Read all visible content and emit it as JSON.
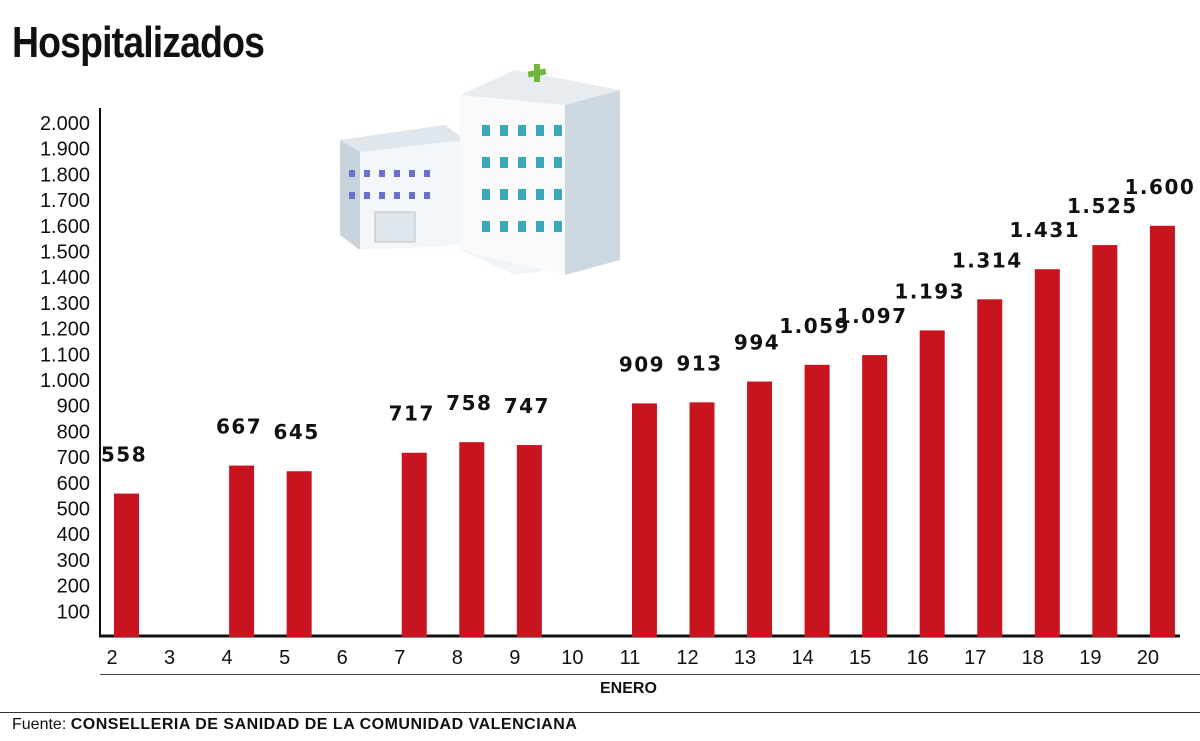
{
  "title": "Hospitalizados",
  "source": {
    "prefix": "Fuente:",
    "name": "CONSELLERIA DE SANIDAD DE LA COMUNIDAD VALENCIANA"
  },
  "colors": {
    "bar": "#c8141e",
    "text": "#111111"
  },
  "illustration": "hospital-buildings-icon",
  "chart_data": {
    "type": "bar",
    "title": "Hospitalizados",
    "xlabel": "ENERO",
    "ylabel": "",
    "categories": [
      "2",
      "3",
      "4",
      "5",
      "6",
      "7",
      "8",
      "9",
      "10",
      "11",
      "12",
      "13",
      "14",
      "15",
      "16",
      "17",
      "18",
      "19",
      "20"
    ],
    "values": [
      558,
      null,
      667,
      645,
      null,
      717,
      758,
      747,
      null,
      909,
      913,
      994,
      1059,
      1097,
      1193,
      1314,
      1431,
      1525,
      1600
    ],
    "data_labels": [
      "558",
      "",
      "667",
      "645",
      "",
      "717",
      "758",
      "747",
      "",
      "909",
      "913",
      "994",
      "1.059",
      "1.097",
      "1.193",
      "1.314",
      "1.431",
      "1.525",
      "1.600"
    ],
    "yticks": [
      "100",
      "200",
      "300",
      "400",
      "500",
      "600",
      "700",
      "800",
      "900",
      "1.000",
      "1.100",
      "1.200",
      "1.300",
      "1.400",
      "1.500",
      "1.600",
      "1.700",
      "1.800",
      "1.900",
      "2.000"
    ],
    "ylim": [
      0,
      2000
    ],
    "grid": false,
    "legend": "none"
  }
}
